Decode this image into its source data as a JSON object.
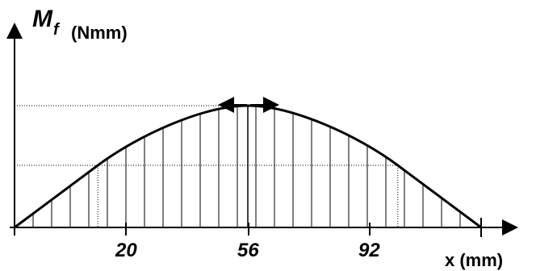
{
  "y_axis_label": "M",
  "y_axis_subscript": "f",
  "y_axis_unit": "(Nmm)",
  "x_axis_label": "x (mm)",
  "x_ticks": [
    "20",
    "56",
    "92"
  ],
  "chart_data": {
    "type": "area",
    "title": "",
    "xlabel": "x (mm)",
    "ylabel": "Mf (Nmm)",
    "x_ticks": [
      20,
      56,
      92
    ],
    "x_range": [
      0,
      112
    ],
    "y_ticks": [],
    "series": [
      {
        "x": [
          0,
          20,
          56,
          92,
          112
        ],
        "y": [
          0,
          0.51,
          1.0,
          0.51,
          0
        ],
        "shape": "bending-moment-diagram (linear on 0–20 and 92–112, curved between, max at 56)"
      }
    ],
    "hatching": "vertical",
    "guide_lines": [
      "value at x=56 (max)",
      "value at x=20 and x=92"
    ],
    "grid": false,
    "legend": "none"
  },
  "colors": {
    "stroke": "#000000",
    "background": "#ffffff"
  }
}
